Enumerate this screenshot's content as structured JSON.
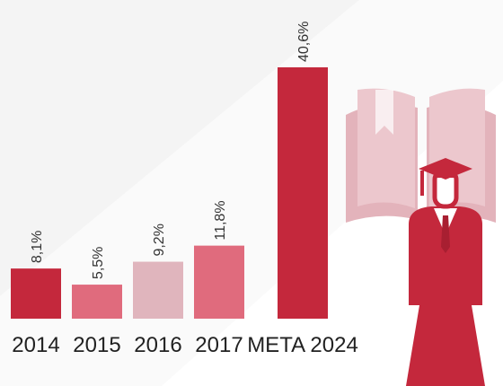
{
  "chart_data": {
    "type": "bar",
    "categories": [
      "2014",
      "2015",
      "2016",
      "2017",
      "META 2024"
    ],
    "values": [
      8.1,
      5.5,
      9.2,
      11.8,
      40.6
    ],
    "value_labels": [
      "8,1%",
      "5,5%",
      "9,2%",
      "11,8%",
      "40,6%"
    ],
    "colors": [
      "#c4283c",
      "#e06b7d",
      "#e0b5bd",
      "#e06b7d",
      "#c4283c"
    ]
  }
}
